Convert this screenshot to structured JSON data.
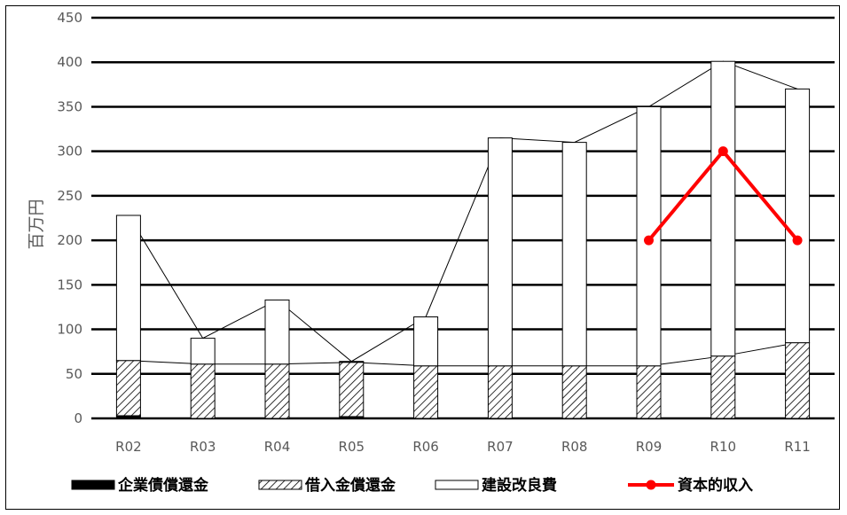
{
  "chart_data": {
    "type": "bar",
    "stacked": true,
    "categories": [
      "R02",
      "R03",
      "R04",
      "R05",
      "R06",
      "R07",
      "R08",
      "R09",
      "R10",
      "R11"
    ],
    "series": [
      {
        "name": "企業債償還金",
        "kind": "bar",
        "pattern": "solid-black",
        "values": [
          3,
          0,
          0,
          2,
          0,
          0,
          0,
          0,
          0,
          0
        ]
      },
      {
        "name": "借入金償還金",
        "kind": "bar",
        "pattern": "hatched",
        "values": [
          62,
          61,
          61,
          61,
          59,
          59,
          59,
          59,
          70,
          85
        ]
      },
      {
        "name": "建設改良費",
        "kind": "bar",
        "pattern": "white",
        "values": [
          163,
          29,
          72,
          1,
          55,
          256,
          251,
          291,
          331,
          285
        ]
      },
      {
        "name": "資本的収入",
        "kind": "line",
        "color": "#ff0000",
        "values": [
          null,
          null,
          null,
          null,
          null,
          null,
          null,
          200,
          300,
          200
        ]
      }
    ],
    "ylabel": "百万円",
    "xlabel": "",
    "ylim": [
      0,
      450
    ],
    "yticks": [
      0,
      50,
      100,
      150,
      200,
      250,
      300,
      350,
      400,
      450
    ],
    "grid": true,
    "legend_position": "bottom",
    "series_lines": true
  }
}
